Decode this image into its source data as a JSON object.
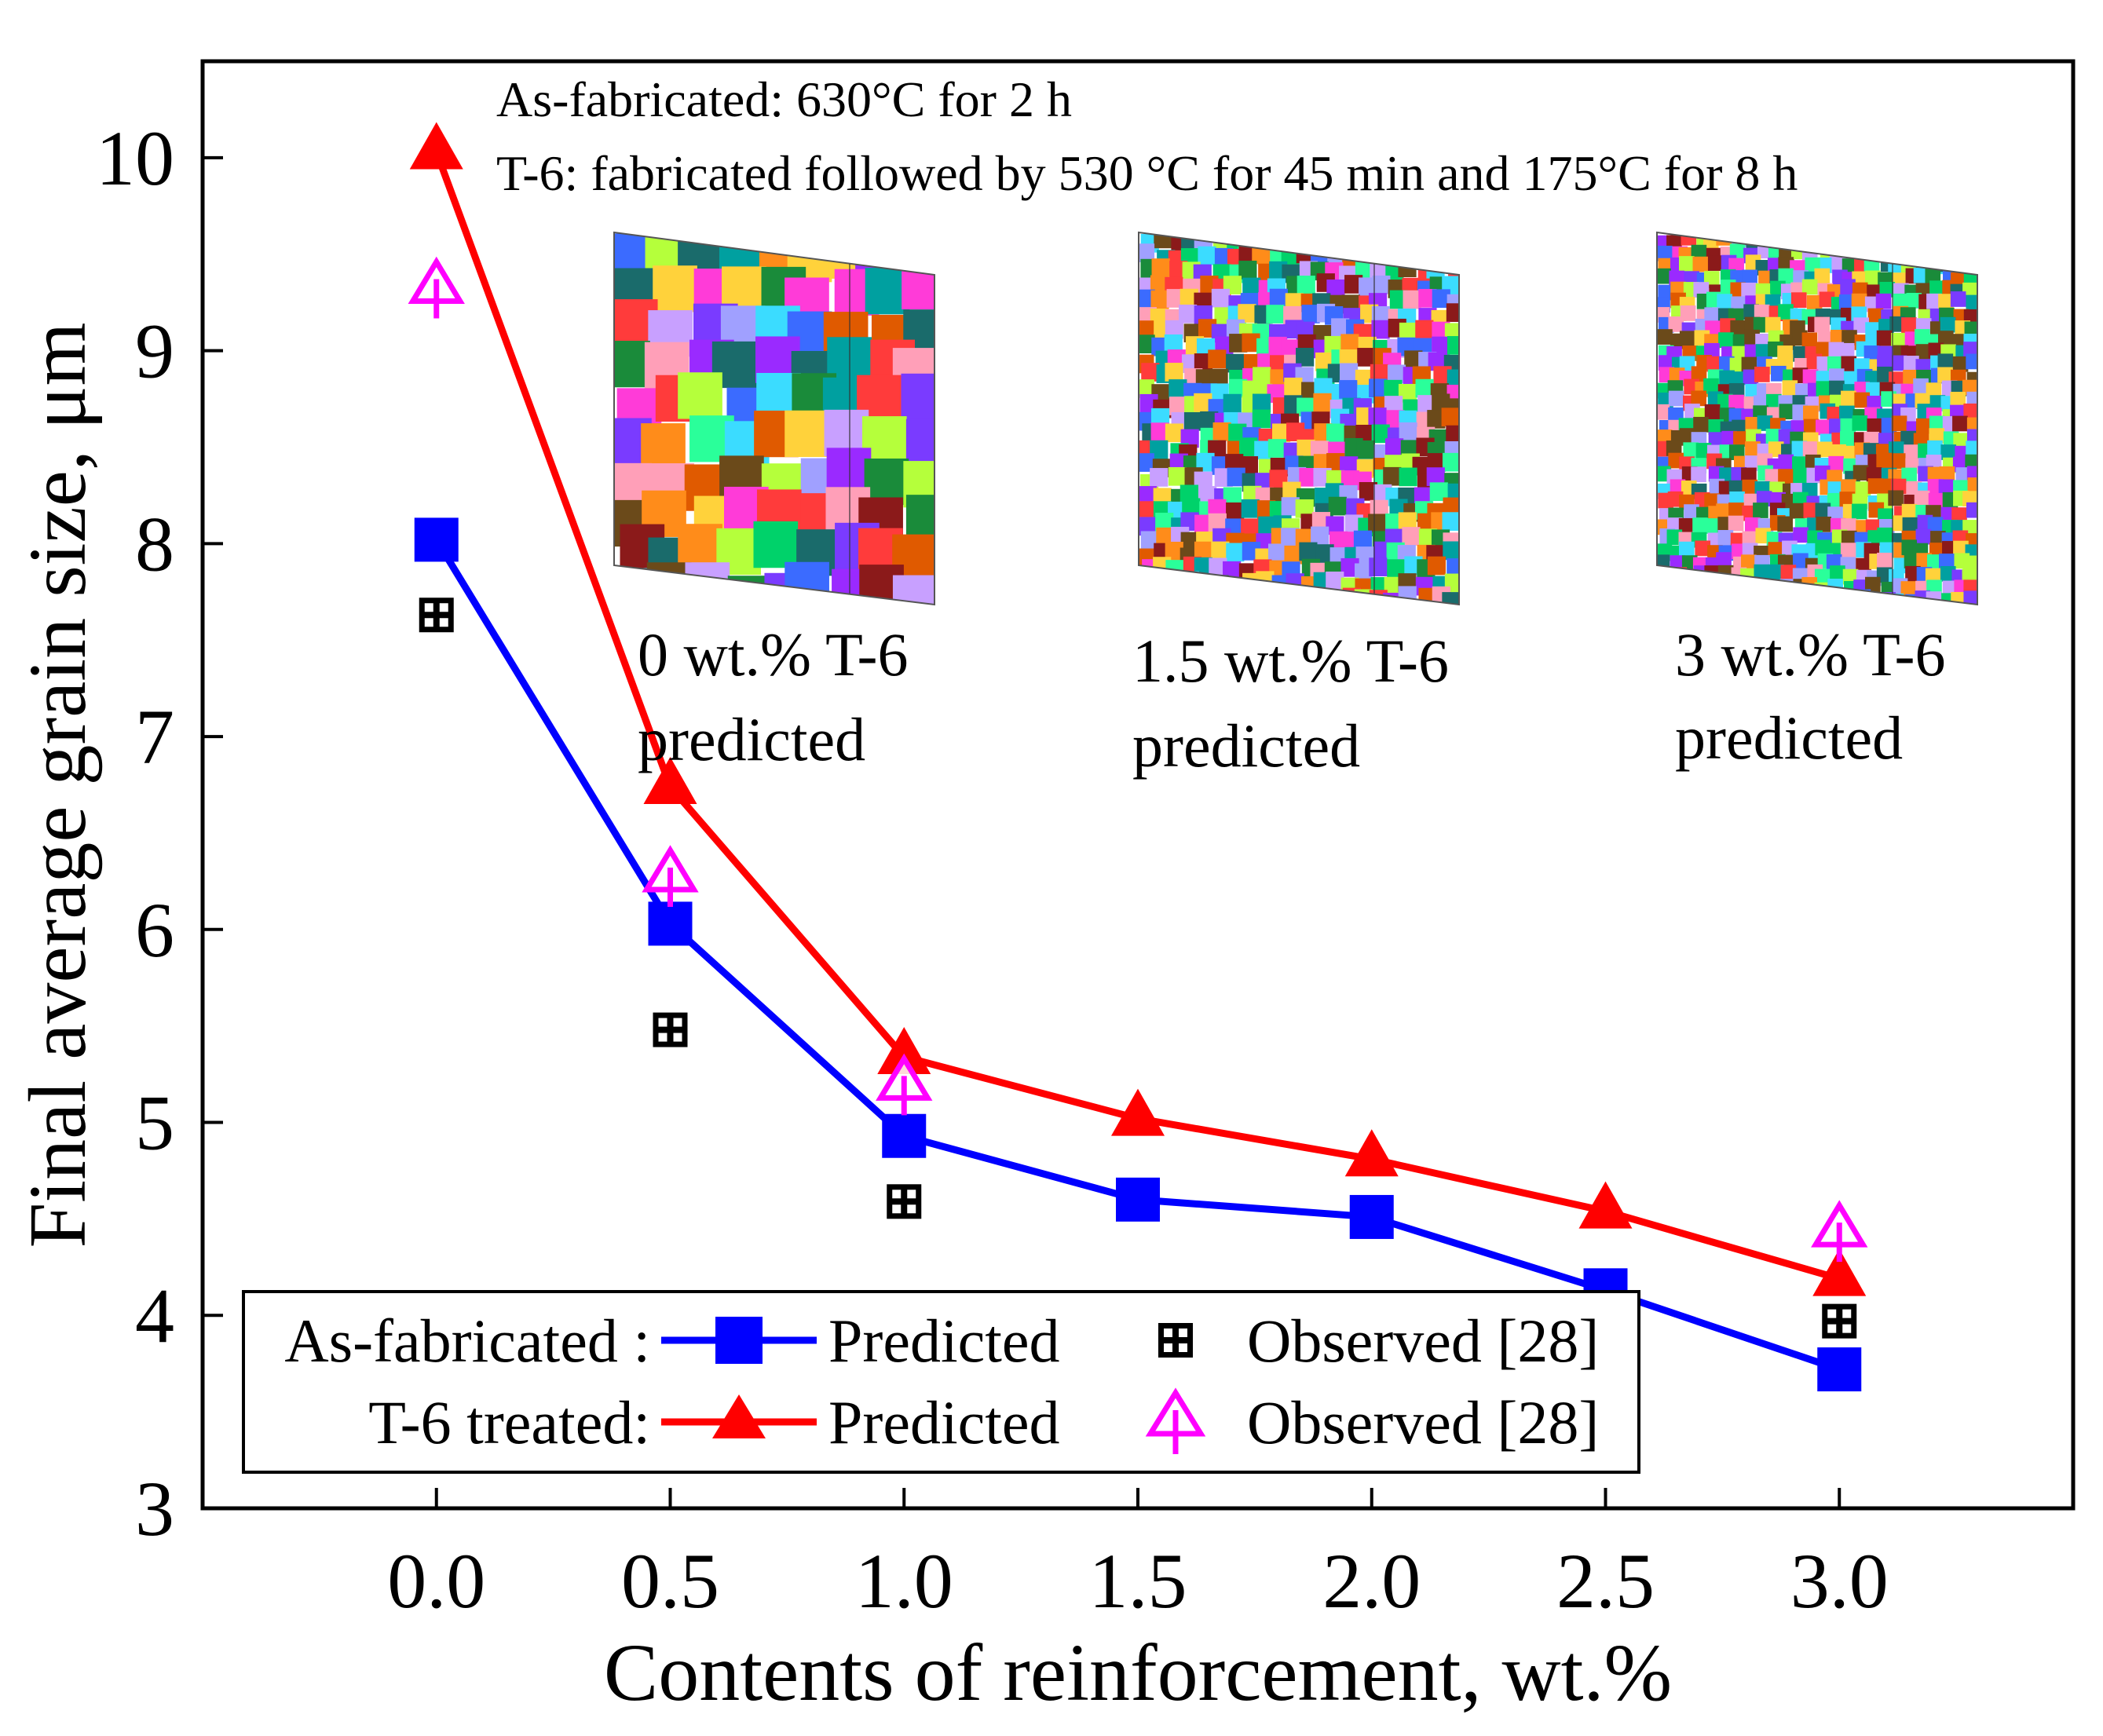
{
  "chart_data": {
    "type": "line",
    "title": "",
    "xlabel": "Contents of reinforcement, wt.%",
    "ylabel": "Final average grain size, μm",
    "xlim": [
      -0.5,
      3.5
    ],
    "ylim": [
      3,
      10.5
    ],
    "x_ticks": [
      "0.0",
      "0.5",
      "1.0",
      "1.5",
      "2.0",
      "2.5",
      "3.0"
    ],
    "y_ticks": [
      "3",
      "4",
      "5",
      "6",
      "7",
      "8",
      "9",
      "10"
    ],
    "x": [
      0.0,
      0.5,
      1.0,
      1.5,
      2.0,
      2.5,
      3.0
    ],
    "series": [
      {
        "name": "As-fabricated : Predicted",
        "group": "As-fabricated :",
        "label": "Predicted",
        "kind": "line",
        "marker": "square",
        "color": "#0000ff",
        "x": [
          0.0,
          0.5,
          1.0,
          1.5,
          2.0,
          2.5,
          3.0
        ],
        "values": [
          8.02,
          6.03,
          4.93,
          4.6,
          4.51,
          4.13,
          3.72
        ]
      },
      {
        "name": "As-fabricated : Observed [28]",
        "group": "As-fabricated :",
        "label": "Observed [28]",
        "kind": "scatter",
        "marker": "dotted-square",
        "color": "#000000",
        "x": [
          0.0,
          0.5,
          1.0,
          3.0
        ],
        "values": [
          7.63,
          5.48,
          4.59,
          3.97
        ]
      },
      {
        "name": "T-6 treated: Predicted",
        "group": "T-6 treated:",
        "label": "Predicted",
        "kind": "line",
        "marker": "triangle",
        "color": "#ff0000",
        "x": [
          0.0,
          0.5,
          1.0,
          1.5,
          2.0,
          2.5,
          3.0
        ],
        "values": [
          10.03,
          6.74,
          5.34,
          5.02,
          4.81,
          4.54,
          4.19
        ]
      },
      {
        "name": "T-6 treated: Observed [28]",
        "group": "T-6 treated:",
        "label": "Observed [28]",
        "kind": "scatter",
        "marker": "open-triangle",
        "color": "#ff00ff",
        "x": [
          0.0,
          0.5,
          1.0,
          3.0
        ],
        "values": [
          9.33,
          6.28,
          5.2,
          4.44
        ]
      }
    ],
    "annotations": [
      "As-fabricated: 630°C for 2 h",
      "T-6: fabricated followed by 530 °C  for 45 min and 175°C for 8 h"
    ],
    "insets": [
      {
        "line1": "0 wt.% T-6",
        "line2": "predicted"
      },
      {
        "line1": "1.5 wt.% T-6",
        "line2": "predicted"
      },
      {
        "line1": "3 wt.% T-6",
        "line2": "predicted"
      }
    ],
    "legend": {
      "placement": "bottom-left",
      "rows": [
        "As-fabricated :",
        "T-6 treated:"
      ]
    }
  }
}
